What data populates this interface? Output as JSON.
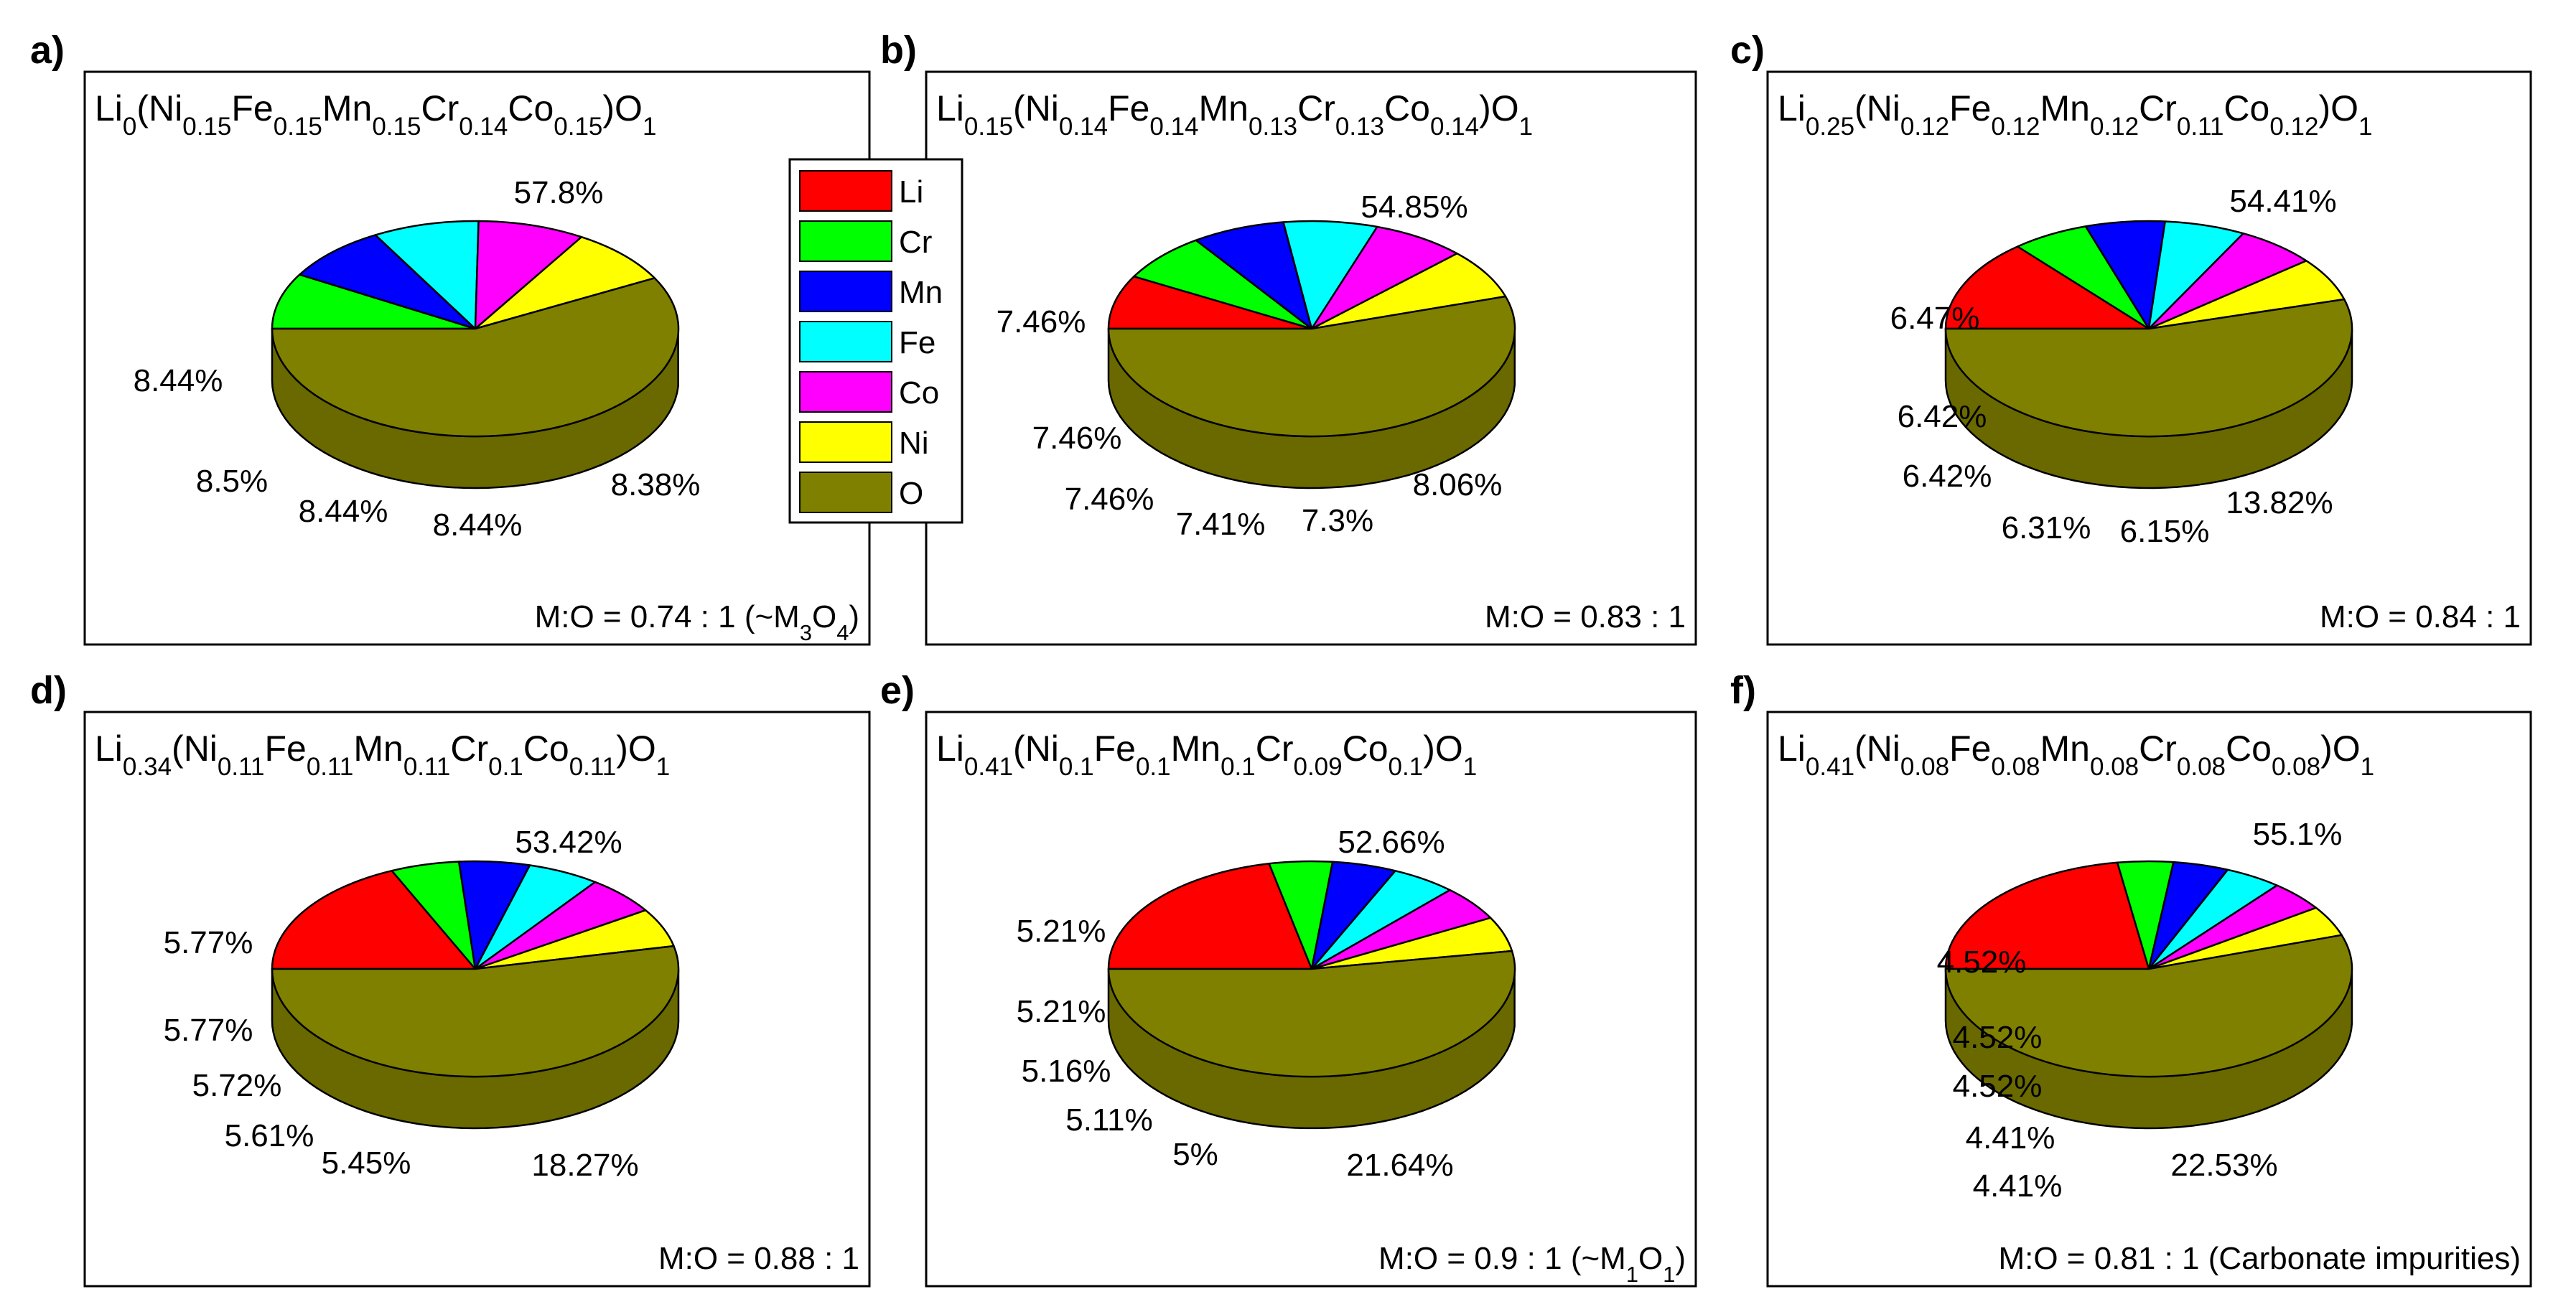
{
  "legend": {
    "items": [
      {
        "name": "Li",
        "color": "#ff0000"
      },
      {
        "name": "Cr",
        "color": "#00ff00"
      },
      {
        "name": "Mn",
        "color": "#0000ff"
      },
      {
        "name": "Fe",
        "color": "#00ffff"
      },
      {
        "name": "Co",
        "color": "#ff00ff"
      },
      {
        "name": "Ni",
        "color": "#ffff00"
      },
      {
        "name": "O",
        "color": "#808000"
      }
    ]
  },
  "chart_data": [
    {
      "type": "pie",
      "panel": "a)",
      "title": [
        {
          "t": "Li"
        },
        {
          "t": "0",
          "s": "sub"
        },
        {
          "t": "(Ni"
        },
        {
          "t": "0.15",
          "s": "sub"
        },
        {
          "t": "Fe"
        },
        {
          "t": "0.15",
          "s": "sub"
        },
        {
          "t": "Mn"
        },
        {
          "t": "0.15",
          "s": "sub"
        },
        {
          "t": "Cr"
        },
        {
          "t": "0.14",
          "s": "sub"
        },
        {
          "t": "Co"
        },
        {
          "t": "0.15",
          "s": "sub"
        },
        {
          "t": ")O"
        },
        {
          "t": "1",
          "s": "sub"
        }
      ],
      "ratio": [
        {
          "t": "M:O = 0.74 : 1  (~M"
        },
        {
          "t": "3",
          "s": "sub"
        },
        {
          "t": "O"
        },
        {
          "t": "4",
          "s": "sub"
        },
        {
          "t": ")"
        }
      ],
      "slices": [
        {
          "name": "Li",
          "value": 0,
          "label": ""
        },
        {
          "name": "Cr",
          "value": 8.38,
          "label": "8.38%"
        },
        {
          "name": "Mn",
          "value": 8.44,
          "label": "8.44%"
        },
        {
          "name": "Fe",
          "value": 8.44,
          "label": "8.44%"
        },
        {
          "name": "Co",
          "value": 8.5,
          "label": "8.5%"
        },
        {
          "name": "Ni",
          "value": 8.44,
          "label": "8.44%"
        },
        {
          "name": "O",
          "value": 57.8,
          "label": "57.8%"
        }
      ]
    },
    {
      "type": "pie",
      "panel": "b)",
      "title": [
        {
          "t": "Li"
        },
        {
          "t": "0.15",
          "s": "sub"
        },
        {
          "t": "(Ni"
        },
        {
          "t": "0.14",
          "s": "sub"
        },
        {
          "t": "Fe"
        },
        {
          "t": "0.14",
          "s": "sub"
        },
        {
          "t": "Mn"
        },
        {
          "t": "0.13",
          "s": "sub"
        },
        {
          "t": "Cr"
        },
        {
          "t": "0.13",
          "s": "sub"
        },
        {
          "t": "Co"
        },
        {
          "t": "0.14",
          "s": "sub"
        },
        {
          "t": ")O"
        },
        {
          "t": "1",
          "s": "sub"
        }
      ],
      "ratio": [
        {
          "t": "M:O = 0.83 : 1"
        }
      ],
      "slices": [
        {
          "name": "Li",
          "value": 8.06,
          "label": "8.06%"
        },
        {
          "name": "Cr",
          "value": 7.3,
          "label": "7.3%"
        },
        {
          "name": "Mn",
          "value": 7.41,
          "label": "7.41%"
        },
        {
          "name": "Fe",
          "value": 7.46,
          "label": "7.46%"
        },
        {
          "name": "Co",
          "value": 7.46,
          "label": "7.46%"
        },
        {
          "name": "Ni",
          "value": 7.46,
          "label": "7.46%"
        },
        {
          "name": "O",
          "value": 54.85,
          "label": "54.85%"
        }
      ]
    },
    {
      "type": "pie",
      "panel": "c)",
      "title": [
        {
          "t": "Li"
        },
        {
          "t": "0.25",
          "s": "sub"
        },
        {
          "t": "(Ni"
        },
        {
          "t": "0.12",
          "s": "sub"
        },
        {
          "t": "Fe"
        },
        {
          "t": "0.12",
          "s": "sub"
        },
        {
          "t": "Mn"
        },
        {
          "t": "0.12",
          "s": "sub"
        },
        {
          "t": "Cr"
        },
        {
          "t": "0.11",
          "s": "sub"
        },
        {
          "t": "Co"
        },
        {
          "t": "0.12",
          "s": "sub"
        },
        {
          "t": ")O"
        },
        {
          "t": "1",
          "s": "sub"
        }
      ],
      "ratio": [
        {
          "t": "M:O = 0.84 : 1"
        }
      ],
      "slices": [
        {
          "name": "Li",
          "value": 13.82,
          "label": "13.82%"
        },
        {
          "name": "Cr",
          "value": 6.15,
          "label": "6.15%"
        },
        {
          "name": "Mn",
          "value": 6.31,
          "label": "6.31%"
        },
        {
          "name": "Fe",
          "value": 6.42,
          "label": "6.42%"
        },
        {
          "name": "Co",
          "value": 6.42,
          "label": "6.42%"
        },
        {
          "name": "Ni",
          "value": 6.47,
          "label": "6.47%"
        },
        {
          "name": "O",
          "value": 54.41,
          "label": "54.41%"
        }
      ]
    },
    {
      "type": "pie",
      "panel": "d)",
      "title": [
        {
          "t": "Li"
        },
        {
          "t": "0.34",
          "s": "sub"
        },
        {
          "t": "(Ni"
        },
        {
          "t": "0.11",
          "s": "sub"
        },
        {
          "t": "Fe"
        },
        {
          "t": "0.11",
          "s": "sub"
        },
        {
          "t": "Mn"
        },
        {
          "t": "0.11",
          "s": "sub"
        },
        {
          "t": "Cr"
        },
        {
          "t": "0.1",
          "s": "sub"
        },
        {
          "t": "Co"
        },
        {
          "t": "0.11",
          "s": "sub"
        },
        {
          "t": ")O"
        },
        {
          "t": "1",
          "s": "sub"
        }
      ],
      "ratio": [
        {
          "t": "M:O = 0.88 : 1"
        }
      ],
      "slices": [
        {
          "name": "Li",
          "value": 18.27,
          "label": "18.27%"
        },
        {
          "name": "Cr",
          "value": 5.45,
          "label": "5.45%"
        },
        {
          "name": "Mn",
          "value": 5.61,
          "label": "5.61%"
        },
        {
          "name": "Fe",
          "value": 5.72,
          "label": "5.72%"
        },
        {
          "name": "Co",
          "value": 5.77,
          "label": "5.77%"
        },
        {
          "name": "Ni",
          "value": 5.77,
          "label": "5.77%"
        },
        {
          "name": "O",
          "value": 53.42,
          "label": "53.42%"
        }
      ]
    },
    {
      "type": "pie",
      "panel": "e)",
      "title": [
        {
          "t": "Li"
        },
        {
          "t": "0.41",
          "s": "sub"
        },
        {
          "t": "(Ni"
        },
        {
          "t": "0.1",
          "s": "sub"
        },
        {
          "t": "Fe"
        },
        {
          "t": "0.1",
          "s": "sub"
        },
        {
          "t": "Mn"
        },
        {
          "t": "0.1",
          "s": "sub"
        },
        {
          "t": "Cr"
        },
        {
          "t": "0.09",
          "s": "sub"
        },
        {
          "t": "Co"
        },
        {
          "t": "0.1",
          "s": "sub"
        },
        {
          "t": ")O"
        },
        {
          "t": "1",
          "s": "sub"
        }
      ],
      "ratio": [
        {
          "t": "M:O = 0.9 : 1 (~M"
        },
        {
          "t": "1",
          "s": "sub"
        },
        {
          "t": "O"
        },
        {
          "t": "1",
          "s": "sub"
        },
        {
          "t": ")"
        }
      ],
      "slices": [
        {
          "name": "Li",
          "value": 21.64,
          "label": "21.64%"
        },
        {
          "name": "Cr",
          "value": 5,
          "label": "5%"
        },
        {
          "name": "Mn",
          "value": 5.11,
          "label": "5.11%"
        },
        {
          "name": "Fe",
          "value": 5.16,
          "label": "5.16%"
        },
        {
          "name": "Co",
          "value": 5.21,
          "label": "5.21%"
        },
        {
          "name": "Ni",
          "value": 5.21,
          "label": "5.21%"
        },
        {
          "name": "O",
          "value": 52.66,
          "label": "52.66%"
        }
      ]
    },
    {
      "type": "pie",
      "panel": "f)",
      "title": [
        {
          "t": "Li"
        },
        {
          "t": "0.41",
          "s": "sub"
        },
        {
          "t": "(Ni"
        },
        {
          "t": "0.08",
          "s": "sub"
        },
        {
          "t": "Fe"
        },
        {
          "t": "0.08",
          "s": "sub"
        },
        {
          "t": "Mn"
        },
        {
          "t": "0.08",
          "s": "sub"
        },
        {
          "t": "Cr"
        },
        {
          "t": "0.08",
          "s": "sub"
        },
        {
          "t": "Co"
        },
        {
          "t": "0.08",
          "s": "sub"
        },
        {
          "t": ")O"
        },
        {
          "t": "1",
          "s": "sub"
        }
      ],
      "ratio": [
        {
          "t": "M:O = 0.81 : 1 (Carbonate impurities)"
        }
      ],
      "slices": [
        {
          "name": "Li",
          "value": 22.53,
          "label": "22.53%"
        },
        {
          "name": "Cr",
          "value": 4.41,
          "label": "4.41%"
        },
        {
          "name": "Mn",
          "value": 4.41,
          "label": "4.41%"
        },
        {
          "name": "Fe",
          "value": 4.52,
          "label": "4.52%"
        },
        {
          "name": "Co",
          "value": 4.52,
          "label": "4.52%"
        },
        {
          "name": "Ni",
          "value": 4.52,
          "label": "4.52%"
        },
        {
          "name": "O",
          "value": 55.1,
          "label": "55.1%"
        }
      ]
    }
  ]
}
